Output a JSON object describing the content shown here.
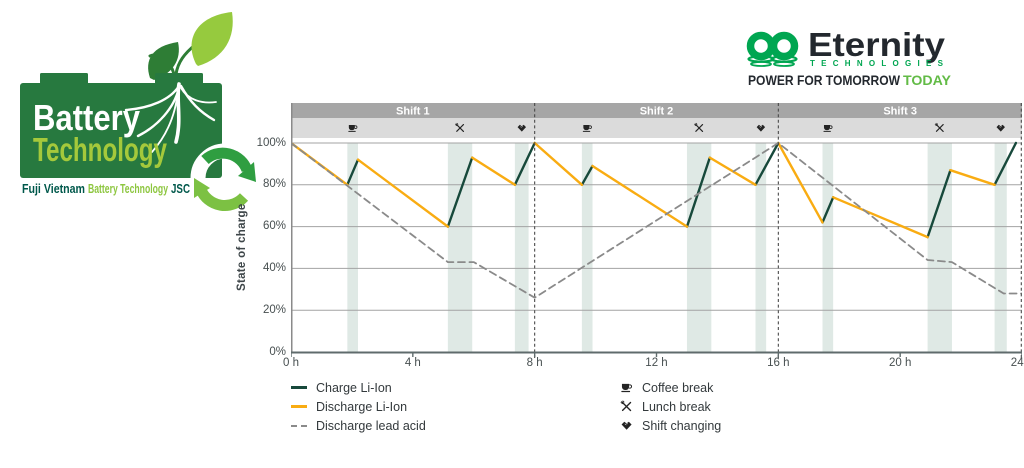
{
  "logo_left": {
    "line1": "Battery",
    "line2": "Technology",
    "tagline_1": "Fuji Vietnam",
    "tagline_2": "Battery Technology",
    "tagline_3": "JSC"
  },
  "logo_right": {
    "brand": "Eternity",
    "sub": "TECHNOLOGIES",
    "tagline_main": "POWER FOR TOMORROW",
    "tagline_accent": "TODAY"
  },
  "colors": {
    "battery_green": "#27793F",
    "lime_green": "#A5C93B",
    "leaf_light": "#96CA3E",
    "leaf_dark": "#2E7D35",
    "teal_text": "#00584B",
    "tagline_green": "#8DC63F",
    "eternity_green": "#00A651",
    "eternity_dark": "#23282E",
    "today_green": "#62BB46",
    "charge_li_ion": "#17493B",
    "discharge_li_ion": "#F9AC12",
    "discharge_lead_acid": "#8A8A8A",
    "event_band": "#DFE9E5"
  },
  "chart_data": {
    "type": "line",
    "title": "",
    "xlabel": "",
    "ylabel": "State of charge",
    "xlim": [
      0,
      24
    ],
    "ylim": [
      0,
      100
    ],
    "grid": true,
    "legend_position": "bottom",
    "x_ticks": [
      {
        "value": 0,
        "label": "0 h"
      },
      {
        "value": 4,
        "label": "4 h"
      },
      {
        "value": 8,
        "label": "8 h"
      },
      {
        "value": 12,
        "label": "12 h"
      },
      {
        "value": 16,
        "label": "16 h"
      },
      {
        "value": 20,
        "label": "20 h"
      },
      {
        "value": 24,
        "label": "24 h"
      }
    ],
    "y_ticks": [
      {
        "value": 100,
        "label": "100%"
      },
      {
        "value": 80,
        "label": "80%"
      },
      {
        "value": 60,
        "label": "60%"
      },
      {
        "value": 40,
        "label": "40%"
      },
      {
        "value": 20,
        "label": "20%"
      },
      {
        "value": 0,
        "label": "0%"
      }
    ],
    "shifts": [
      {
        "label": "Shift 1",
        "start": 0,
        "end": 8
      },
      {
        "label": "Shift 2",
        "start": 8,
        "end": 16
      },
      {
        "label": "Shift 3",
        "start": 16,
        "end": 24
      }
    ],
    "shift_boundaries": [
      8,
      16,
      24
    ],
    "events": [
      {
        "type": "coffee",
        "start": 1.85,
        "end": 2.2
      },
      {
        "type": "lunch",
        "start": 5.15,
        "end": 5.95
      },
      {
        "type": "shift",
        "start": 7.35,
        "end": 7.8
      },
      {
        "type": "coffee",
        "start": 9.55,
        "end": 9.9
      },
      {
        "type": "lunch",
        "start": 13.0,
        "end": 13.8
      },
      {
        "type": "shift",
        "start": 15.25,
        "end": 15.6
      },
      {
        "type": "coffee",
        "start": 17.45,
        "end": 17.8
      },
      {
        "type": "lunch",
        "start": 20.9,
        "end": 21.7
      },
      {
        "type": "shift",
        "start": 23.1,
        "end": 23.5
      }
    ],
    "series": [
      {
        "name": "Charge Li-Ion",
        "color": "#17493B",
        "style": "solid",
        "segments": [
          [
            [
              1.85,
              80
            ],
            [
              2.2,
              92
            ]
          ],
          [
            [
              5.15,
              60
            ],
            [
              5.95,
              93
            ]
          ],
          [
            [
              7.35,
              80
            ],
            [
              8,
              100
            ]
          ],
          [
            [
              9.55,
              80
            ],
            [
              9.9,
              89
            ]
          ],
          [
            [
              13.0,
              60
            ],
            [
              13.75,
              93
            ]
          ],
          [
            [
              15.25,
              80
            ],
            [
              16,
              100
            ]
          ],
          [
            [
              17.45,
              62
            ],
            [
              17.8,
              74
            ]
          ],
          [
            [
              20.9,
              55
            ],
            [
              21.65,
              87
            ]
          ],
          [
            [
              23.1,
              80
            ],
            [
              23.8,
              100
            ]
          ]
        ]
      },
      {
        "name": "Discharge Li-Ion",
        "color": "#F9AC12",
        "style": "solid",
        "segments": [
          [
            [
              0,
              100
            ],
            [
              1.85,
              80
            ]
          ],
          [
            [
              2.2,
              92
            ],
            [
              5.15,
              60
            ]
          ],
          [
            [
              5.95,
              93
            ],
            [
              7.35,
              80
            ]
          ],
          [
            [
              8,
              100
            ],
            [
              9.55,
              80
            ]
          ],
          [
            [
              9.9,
              89
            ],
            [
              13.0,
              60
            ]
          ],
          [
            [
              13.75,
              93
            ],
            [
              15.25,
              80
            ]
          ],
          [
            [
              16,
              100
            ],
            [
              17.45,
              62
            ]
          ],
          [
            [
              17.8,
              74
            ],
            [
              20.9,
              55
            ]
          ],
          [
            [
              21.65,
              87
            ],
            [
              23.1,
              80
            ]
          ]
        ]
      },
      {
        "name": "Discharge lead acid",
        "color": "#8A8A8A",
        "style": "dashed",
        "segments": [
          [
            [
              0,
              100
            ],
            [
              5.15,
              43
            ],
            [
              6.0,
              43
            ],
            [
              8,
              26
            ],
            [
              16,
              100
            ],
            [
              20.9,
              44
            ],
            [
              21.7,
              43
            ],
            [
              23.4,
              28
            ],
            [
              24,
              28
            ]
          ]
        ]
      }
    ],
    "legend_right": [
      {
        "icon": "coffee",
        "label": "Coffee break"
      },
      {
        "icon": "lunch",
        "label": "Lunch break"
      },
      {
        "icon": "shift",
        "label": "Shift changing"
      }
    ]
  }
}
